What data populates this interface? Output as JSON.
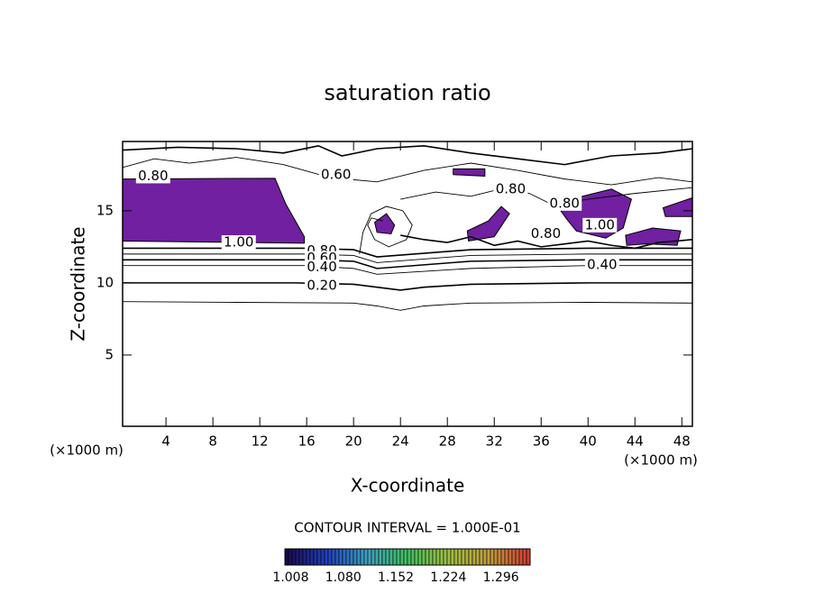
{
  "chart_data": {
    "type": "contour",
    "title": "saturation ratio",
    "x_label": "X-coordinate",
    "y_label": "Z-coordinate",
    "x_unit": "(×1000 m)",
    "y_unit": "(×1000 m)",
    "xlim": [
      0.3,
      48.9
    ],
    "ylim": [
      0.06,
      19.8
    ],
    "xticks": [
      4,
      8,
      12,
      16,
      20,
      24,
      28,
      32,
      36,
      40,
      44,
      48
    ],
    "yticks": [
      5,
      10,
      15
    ],
    "region_color": "#7020a0",
    "regions": [
      {
        "x": [
          0.3,
          13.3,
          14.2,
          15.8,
          15.8,
          0.3
        ],
        "z": [
          17.2,
          17.25,
          15.5,
          13.2,
          12.75,
          12.9
        ]
      },
      {
        "x": [
          21.8,
          22.8,
          23.5,
          23.2,
          22.0
        ],
        "z": [
          14.2,
          14.8,
          14.0,
          13.4,
          13.5
        ]
      },
      {
        "x": [
          28.5,
          31.2,
          31.2,
          28.5
        ],
        "z": [
          17.9,
          17.9,
          17.4,
          17.5
        ]
      },
      {
        "x": [
          29.7,
          31.5,
          32.6,
          33.3,
          32.0,
          29.8
        ],
        "z": [
          13.6,
          14.3,
          15.3,
          14.8,
          13.2,
          12.9
        ]
      },
      {
        "x": [
          37.5,
          39.5,
          42.0,
          43.7,
          43.0,
          41.5,
          39.0,
          38.2
        ],
        "z": [
          15.2,
          16.0,
          16.5,
          15.8,
          13.8,
          13.1,
          13.6,
          14.4
        ]
      },
      {
        "x": [
          43.2,
          45.5,
          47.9,
          47.6,
          45.0,
          43.3
        ],
        "z": [
          13.3,
          13.8,
          13.6,
          12.6,
          12.7,
          12.6
        ]
      },
      {
        "x": [
          46.4,
          48.9,
          48.9,
          46.6
        ],
        "z": [
          15.2,
          15.9,
          14.6,
          14.6
        ]
      }
    ],
    "contours": [
      {
        "x": [
          0.3,
          10,
          20,
          22,
          24,
          26,
          30,
          40,
          48.9
        ],
        "z": [
          8.7,
          8.65,
          8.6,
          8.4,
          8.1,
          8.4,
          8.6,
          8.65,
          8.6
        ]
      },
      {
        "x": [
          0.3,
          15,
          20,
          22,
          24,
          26,
          30,
          40,
          48.9
        ],
        "z": [
          10,
          10,
          9.9,
          9.7,
          9.5,
          9.7,
          9.9,
          10,
          10
        ]
      },
      {
        "x": [
          0.3,
          16,
          20,
          22,
          30,
          40,
          48.9
        ],
        "z": [
          11.2,
          11.2,
          11.0,
          10.6,
          11.0,
          11.2,
          11.2
        ]
      },
      {
        "x": [
          0.3,
          16,
          20,
          22,
          30,
          40,
          48.9
        ],
        "z": [
          11.6,
          11.6,
          11.5,
          11.0,
          11.5,
          11.6,
          11.6
        ]
      },
      {
        "x": [
          0.3,
          16,
          20,
          22,
          30,
          40,
          48.9
        ],
        "z": [
          12.0,
          12.0,
          11.9,
          11.4,
          11.9,
          12.0,
          12.0
        ]
      },
      {
        "x": [
          0.3,
          16,
          20,
          22,
          30,
          40,
          48.9
        ],
        "z": [
          12.4,
          12.4,
          12.3,
          11.8,
          12.3,
          12.4,
          12.4
        ]
      },
      {
        "x": [
          0.3,
          3,
          6,
          10,
          14,
          18,
          22,
          26,
          30,
          34,
          38,
          42,
          46,
          48.9
        ],
        "z": [
          18.0,
          18.6,
          18.3,
          18.7,
          18.2,
          17.3,
          17.0,
          17.8,
          18.3,
          17.8,
          17.2,
          16.8,
          17.3,
          17.0
        ]
      },
      {
        "x": [
          0.3,
          5,
          10,
          14,
          17,
          19,
          22,
          26,
          30,
          34,
          38,
          42,
          46,
          48.9
        ],
        "z": [
          19.2,
          19.4,
          19.3,
          19.0,
          19.5,
          18.8,
          19.3,
          19.5,
          19.0,
          18.6,
          18.2,
          18.8,
          19.0,
          19.3
        ]
      },
      {
        "x": [
          20.5,
          20.8,
          21.5,
          22.8,
          24.2,
          25,
          24.5,
          23,
          21.8,
          21.2,
          21.5,
          22.5
        ],
        "z": [
          12,
          13.5,
          14.8,
          15.3,
          15,
          14,
          13,
          12.5,
          13,
          14,
          14.5,
          14.3
        ]
      },
      {
        "x": [
          24,
          26,
          28,
          30,
          32,
          34,
          36,
          38,
          40,
          42,
          44,
          46,
          48.9
        ],
        "z": [
          13.3,
          13.0,
          12.8,
          13.2,
          12.6,
          12.9,
          12.5,
          12.7,
          12.9,
          12.6,
          12.4,
          12.8,
          13.0
        ]
      },
      {
        "x": [
          24,
          27,
          30,
          33,
          35,
          37,
          40,
          44,
          48.9
        ],
        "z": [
          15.8,
          16.3,
          16.0,
          16.6,
          16.2,
          15.4,
          15.8,
          16.2,
          16.6
        ]
      }
    ],
    "contour_labels": [
      {
        "value": 0.8,
        "label": "0.80",
        "x": 2.9,
        "z": 17.4
      },
      {
        "value": 0.6,
        "label": "0.60",
        "x": 18.5,
        "z": 17.5
      },
      {
        "value": 0.8,
        "label": "0.80",
        "x": 33.4,
        "z": 16.5
      },
      {
        "value": 0.8,
        "label": "0.80",
        "x": 38.0,
        "z": 15.5
      },
      {
        "value": 1.0,
        "label": "1.00",
        "x": 41.0,
        "z": 14.0
      },
      {
        "value": 1.0,
        "label": "1.00",
        "x": 10.2,
        "z": 12.8
      },
      {
        "value": 0.8,
        "label": "0.80",
        "x": 17.3,
        "z": 12.2
      },
      {
        "value": 0.6,
        "label": "0.60",
        "x": 17.3,
        "z": 11.7
      },
      {
        "value": 0.4,
        "label": "0.40",
        "x": 17.3,
        "z": 11.1
      },
      {
        "value": 0.2,
        "label": "0.20",
        "x": 17.3,
        "z": 9.8
      },
      {
        "value": 0.8,
        "label": "0.80",
        "x": 36.4,
        "z": 13.4
      },
      {
        "value": 0.4,
        "label": "0.40",
        "x": 41.2,
        "z": 11.25
      }
    ],
    "contour_interval_label": "CONTOUR INTERVAL = 1.000E-01",
    "colorbar": {
      "lim": [
        1.0,
        1.336
      ],
      "ticks": [
        {
          "value": 1.008,
          "label": "1.008"
        },
        {
          "value": 1.08,
          "label": "1.080"
        },
        {
          "value": 1.152,
          "label": "1.152"
        },
        {
          "value": 1.224,
          "label": "1.224"
        },
        {
          "value": 1.296,
          "label": "1.296"
        }
      ],
      "colors": [
        "#1a0a50",
        "#2040c0",
        "#40a0c0",
        "#40c060",
        "#a0c040",
        "#c0a040",
        "#d04030"
      ]
    }
  }
}
